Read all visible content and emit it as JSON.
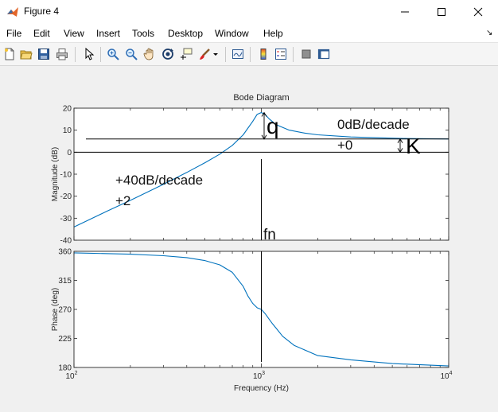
{
  "window": {
    "title": "Figure 4"
  },
  "menu": {
    "items": [
      "File",
      "Edit",
      "View",
      "Insert",
      "Tools",
      "Desktop",
      "Window",
      "Help"
    ],
    "dock_arrow": "↘"
  },
  "toolbar": {
    "buttons": [
      "new-figure",
      "open-file",
      "save",
      "print",
      "edit-plot",
      "zoom-in",
      "zoom-out",
      "pan",
      "rotate-3d",
      "data-cursor",
      "brush",
      "link-plot",
      "insert-colorbar",
      "insert-legend",
      "hide-plot-tools",
      "show-plot-tools"
    ]
  },
  "chart_data": [
    {
      "type": "line",
      "title": "Bode Diagram",
      "xlabel": "",
      "ylabel": "Magnitude (dB)",
      "xscale": "log",
      "xlim": [
        100,
        10000
      ],
      "ylim": [
        -40,
        20
      ],
      "yticks": [
        "20",
        "10",
        "0",
        "-10",
        "-20",
        "-30",
        "-40"
      ],
      "yticks_values": [
        20,
        10,
        0,
        -10,
        -20,
        -30,
        -40
      ],
      "grid": false,
      "series": [
        {
          "x": [
            100,
            150,
            200,
            300,
            400,
            500,
            600,
            700,
            800,
            900,
            950,
            1000,
            1050,
            1100,
            1200,
            1400,
            1700,
            2000,
            3000,
            4000,
            6000,
            10000
          ],
          "y": [
            -34,
            -26.8,
            -21.9,
            -14.6,
            -9.2,
            -4.8,
            -0.9,
            3.1,
            7.9,
            14.0,
            17.2,
            18.0,
            17.0,
            15.2,
            12.5,
            10.1,
            8.7,
            7.9,
            6.9,
            6.6,
            6.2,
            6.0
          ]
        }
      ],
      "reference_lines": {
        "hline_high": 6,
        "hline_zero": 0,
        "vline_x": 1000
      },
      "annotations": {
        "q_label": "q",
        "k_label": "K",
        "slope_right": "0dB/decade",
        "slope_right_order": "+0",
        "slope_left": "+40dB/decade",
        "slope_left_order": "+2",
        "fn_label": "fn"
      }
    },
    {
      "type": "line",
      "title": "",
      "xlabel": "Frequency  (Hz)",
      "ylabel": "Phase (deg)",
      "xscale": "log",
      "xlim": [
        100,
        10000
      ],
      "ylim": [
        180,
        360
      ],
      "yticks": [
        "360",
        "315",
        "270",
        "225",
        "180"
      ],
      "yticks_values": [
        360,
        315,
        270,
        225,
        180
      ],
      "xticks_base": "10",
      "xticks_exp": [
        "2",
        "3",
        "4"
      ],
      "xticks_values": [
        100,
        1000,
        10000
      ],
      "grid": false,
      "series": [
        {
          "x": [
            100,
            200,
            300,
            400,
            500,
            600,
            700,
            800,
            850,
            900,
            950,
            1000,
            1050,
            1100,
            1150,
            1200,
            1300,
            1500,
            2000,
            3000,
            5000,
            10000
          ],
          "y": [
            357.7,
            355.6,
            353.2,
            350.2,
            345.7,
            339.0,
            327.4,
            305.6,
            290.2,
            279.2,
            272.5,
            270.0,
            263.1,
            254.9,
            247.3,
            240.9,
            228.3,
            214.0,
            198.4,
            191.8,
            186.1,
            182.3
          ]
        }
      ],
      "reference_lines": {
        "vline_x": 1000
      }
    }
  ]
}
